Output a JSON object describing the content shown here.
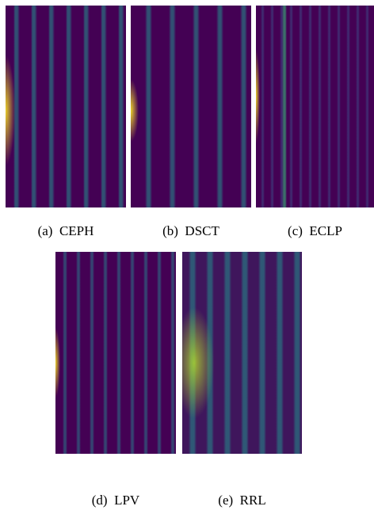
{
  "panels": [
    {
      "caption": "(a)  CEPH"
    },
    {
      "caption": "(b)  DSCT"
    },
    {
      "caption": "(c)  ECLP"
    },
    {
      "caption": "(d)  LPV"
    },
    {
      "caption": "(e)  RRL"
    }
  ]
}
